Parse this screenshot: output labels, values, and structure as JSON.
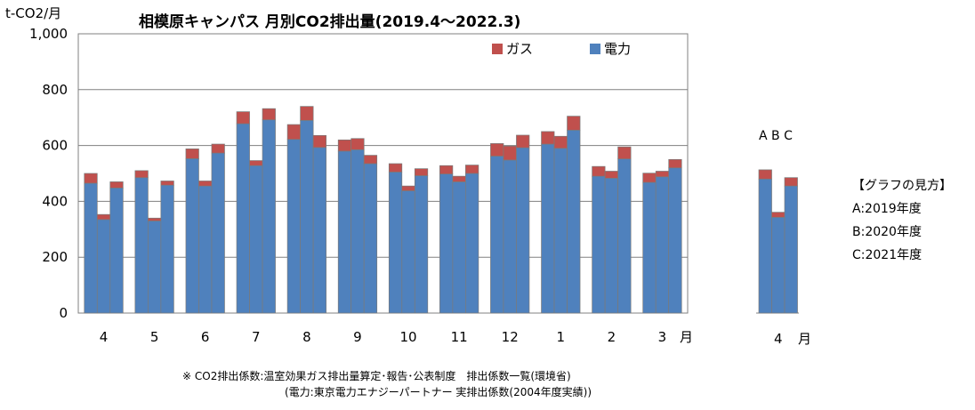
{
  "chart_data": {
    "type": "bar",
    "stacked": true,
    "title": "相模原キャンパス 月別CO2排出量(2019.4～2022.3)",
    "ylabel": "t-CO2/月",
    "xlabel": "月",
    "ylim": [
      0,
      1000
    ],
    "yticks": [
      "0",
      "200",
      "400",
      "600",
      "800",
      "1,000"
    ],
    "grid": true,
    "categories": [
      "4",
      "5",
      "6",
      "7",
      "8",
      "9",
      "10",
      "11",
      "12",
      "1",
      "2",
      "3"
    ],
    "groups": [
      "A",
      "B",
      "C"
    ],
    "series": [
      {
        "name": "電力",
        "color": "#4F81BD",
        "values": [
          [
            465,
            335,
            448
          ],
          [
            485,
            330,
            458
          ],
          [
            553,
            455,
            573
          ],
          [
            678,
            528,
            692
          ],
          [
            622,
            690,
            593
          ],
          [
            580,
            585,
            535
          ],
          [
            505,
            438,
            492
          ],
          [
            498,
            470,
            500
          ],
          [
            562,
            548,
            592
          ],
          [
            605,
            590,
            655
          ],
          [
            490,
            483,
            552
          ],
          [
            468,
            488,
            520
          ]
        ]
      },
      {
        "name": "ガス",
        "color": "#C0504D",
        "values": [
          [
            35,
            18,
            22
          ],
          [
            25,
            10,
            15
          ],
          [
            35,
            18,
            32
          ],
          [
            43,
            18,
            40
          ],
          [
            53,
            50,
            43
          ],
          [
            40,
            40,
            30
          ],
          [
            30,
            17,
            25
          ],
          [
            30,
            20,
            30
          ],
          [
            45,
            50,
            45
          ],
          [
            45,
            43,
            50
          ],
          [
            35,
            25,
            43
          ],
          [
            33,
            20,
            30
          ]
        ]
      }
    ],
    "side_chart": {
      "category": "4",
      "xlabel": "月",
      "groups_label": "A B C",
      "electricity": [
        480,
        343,
        455
      ],
      "gas": [
        33,
        18,
        30
      ]
    }
  },
  "legend": {
    "gas": "ガス",
    "electric": "電力"
  },
  "guide": {
    "title": "【グラフの見方】",
    "lines": [
      "A:2019年度",
      "B:2020年度",
      "C:2021年度"
    ]
  },
  "notes": {
    "line1": "※ CO2排出係数:温室効果ガス排出量算定･報告･公表制度　排出係数一覧(環境省)",
    "line2": "(電力:東京電力エナジーパートナー 実排出係数(2004年度実績))"
  }
}
